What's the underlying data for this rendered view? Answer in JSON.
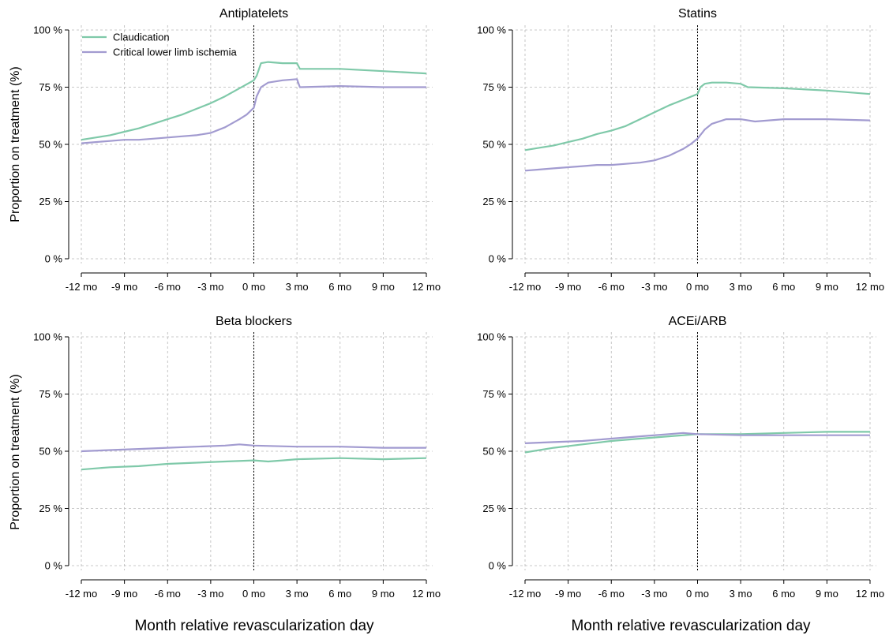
{
  "figure": {
    "xlabel_left": "Month relative revascularization day",
    "xlabel_right": "Month relative revascularization day",
    "ylabel_top": "Proportion on treatment (%)",
    "ylabel_bottom": "Proportion on treatment (%)",
    "legend": [
      {
        "name": "Claudication",
        "color": "#7fc9a9"
      },
      {
        "name": "Critical lower limb ischemia",
        "color": "#a29bd0"
      }
    ]
  },
  "chart_data": [
    {
      "type": "line",
      "title": "Antiplatelets",
      "xlim": [
        -12,
        12
      ],
      "ylim": [
        0,
        100
      ],
      "xticks": [
        -12,
        -9,
        -6,
        -3,
        0,
        3,
        6,
        9,
        12
      ],
      "xtick_labels": [
        "-12 mo",
        "-9 mo",
        "-6 mo",
        "-3 mo",
        "0 mo",
        "3 mo",
        "6 mo",
        "9 mo",
        "12 mo"
      ],
      "yticks": [
        0,
        25,
        50,
        75,
        100
      ],
      "ytick_labels": [
        "0 %",
        "25 %",
        "50 %",
        "75 %",
        "100 %"
      ],
      "reference_line_x": 0,
      "grid": true,
      "legend_position": "top-left",
      "series": [
        {
          "name": "Claudication",
          "color": "#7fc9a9",
          "x": [
            -12,
            -11,
            -10,
            -9,
            -8,
            -7,
            -6,
            -5,
            -4,
            -3,
            -2,
            -1,
            0,
            0.2,
            0.5,
            1,
            2,
            3,
            3.2,
            6,
            9,
            12
          ],
          "y": [
            52,
            53,
            54,
            55.5,
            57,
            59,
            61,
            63,
            65.5,
            68,
            71,
            74.5,
            78,
            80,
            85.5,
            86,
            85.5,
            85.5,
            83,
            83,
            82,
            81
          ]
        },
        {
          "name": "Critical lower limb ischemia",
          "color": "#a29bd0",
          "x": [
            -12,
            -11,
            -10,
            -9,
            -8,
            -7,
            -6,
            -5,
            -4,
            -3,
            -2,
            -1,
            -0.5,
            0,
            0.2,
            0.5,
            1,
            2,
            3,
            3.2,
            6,
            9,
            12
          ],
          "y": [
            50.5,
            51,
            51.5,
            52,
            52,
            52.5,
            53,
            53.5,
            54,
            55,
            57.5,
            61,
            63,
            66,
            71,
            75,
            77,
            78,
            78.5,
            75,
            75.5,
            75,
            75
          ]
        }
      ]
    },
    {
      "type": "line",
      "title": "Statins",
      "xlim": [
        -12,
        12
      ],
      "ylim": [
        0,
        100
      ],
      "xticks": [
        -12,
        -9,
        -6,
        -3,
        0,
        3,
        6,
        9,
        12
      ],
      "xtick_labels": [
        "-12 mo",
        "-9 mo",
        "-6 mo",
        "-3 mo",
        "0 mo",
        "3 mo",
        "6 mo",
        "9 mo",
        "12 mo"
      ],
      "yticks": [
        0,
        25,
        50,
        75,
        100
      ],
      "ytick_labels": [
        "0 %",
        "25 %",
        "50 %",
        "75 %",
        "100 %"
      ],
      "reference_line_x": 0,
      "grid": true,
      "series": [
        {
          "name": "Claudication",
          "color": "#7fc9a9",
          "x": [
            -12,
            -11,
            -10,
            -9,
            -8,
            -7,
            -6,
            -5,
            -4,
            -3,
            -2,
            -1,
            0,
            0.2,
            0.5,
            1,
            2,
            3,
            3.5,
            6,
            9,
            12
          ],
          "y": [
            47.5,
            48.5,
            49.5,
            51,
            52.5,
            54.5,
            56,
            58,
            61,
            64,
            67,
            69.5,
            72,
            75,
            76.5,
            77,
            77,
            76.5,
            75,
            74.5,
            73.5,
            72
          ]
        },
        {
          "name": "Critical lower limb ischemia",
          "color": "#a29bd0",
          "x": [
            -12,
            -11,
            -10,
            -9,
            -8,
            -7,
            -6,
            -5,
            -4,
            -3,
            -2,
            -1,
            -0.5,
            0,
            0.5,
            1,
            2,
            3,
            4,
            6,
            9,
            12
          ],
          "y": [
            38.5,
            39,
            39.5,
            40,
            40.5,
            41,
            41,
            41.5,
            42,
            43,
            45,
            48,
            50,
            52.5,
            56.5,
            59,
            61,
            61,
            60,
            61,
            61,
            60.5
          ]
        }
      ]
    },
    {
      "type": "line",
      "title": "Beta blockers",
      "xlim": [
        -12,
        12
      ],
      "ylim": [
        0,
        100
      ],
      "xticks": [
        -12,
        -9,
        -6,
        -3,
        0,
        3,
        6,
        9,
        12
      ],
      "xtick_labels": [
        "-12 mo",
        "-9 mo",
        "-6 mo",
        "-3 mo",
        "0 mo",
        "3 mo",
        "6 mo",
        "9 mo",
        "12 mo"
      ],
      "yticks": [
        0,
        25,
        50,
        75,
        100
      ],
      "ytick_labels": [
        "0 %",
        "25 %",
        "50 %",
        "75 %",
        "100 %"
      ],
      "reference_line_x": 0,
      "grid": true,
      "series": [
        {
          "name": "Claudication",
          "color": "#7fc9a9",
          "x": [
            -12,
            -10,
            -8,
            -6,
            -4,
            -2,
            0,
            1,
            2,
            3,
            6,
            9,
            12
          ],
          "y": [
            42,
            43,
            43.5,
            44.5,
            45,
            45.5,
            46,
            45.5,
            46,
            46.5,
            47,
            46.5,
            47
          ]
        },
        {
          "name": "Critical lower limb ischemia",
          "color": "#a29bd0",
          "x": [
            -12,
            -10,
            -8,
            -6,
            -4,
            -2,
            -1,
            0,
            3,
            6,
            9,
            12
          ],
          "y": [
            50,
            50.5,
            51,
            51.5,
            52,
            52.5,
            53,
            52.5,
            52,
            52,
            51.5,
            51.5
          ]
        }
      ]
    },
    {
      "type": "line",
      "title": "ACEi/ARB",
      "xlim": [
        -12,
        12
      ],
      "ylim": [
        0,
        100
      ],
      "xticks": [
        -12,
        -9,
        -6,
        -3,
        0,
        3,
        6,
        9,
        12
      ],
      "xtick_labels": [
        "-12 mo",
        "-9 mo",
        "-6 mo",
        "-3 mo",
        "0 mo",
        "3 mo",
        "6 mo",
        "9 mo",
        "12 mo"
      ],
      "yticks": [
        0,
        25,
        50,
        75,
        100
      ],
      "ytick_labels": [
        "0 %",
        "25 %",
        "50 %",
        "75 %",
        "100 %"
      ],
      "reference_line_x": 0,
      "grid": true,
      "series": [
        {
          "name": "Claudication",
          "color": "#7fc9a9",
          "x": [
            -12,
            -10,
            -8,
            -6,
            -4,
            -2,
            0,
            3,
            6,
            9,
            12
          ],
          "y": [
            49.5,
            51.5,
            53,
            54.5,
            55.5,
            56.5,
            57.5,
            57.5,
            58,
            58.5,
            58.5
          ]
        },
        {
          "name": "Critical lower limb ischemia",
          "color": "#a29bd0",
          "x": [
            -12,
            -10,
            -8,
            -6,
            -4,
            -2,
            -1,
            0,
            3,
            6,
            9,
            12
          ],
          "y": [
            53.5,
            54,
            54.5,
            55.5,
            56.5,
            57.5,
            58,
            57.5,
            57,
            57,
            57,
            57
          ]
        }
      ]
    }
  ]
}
